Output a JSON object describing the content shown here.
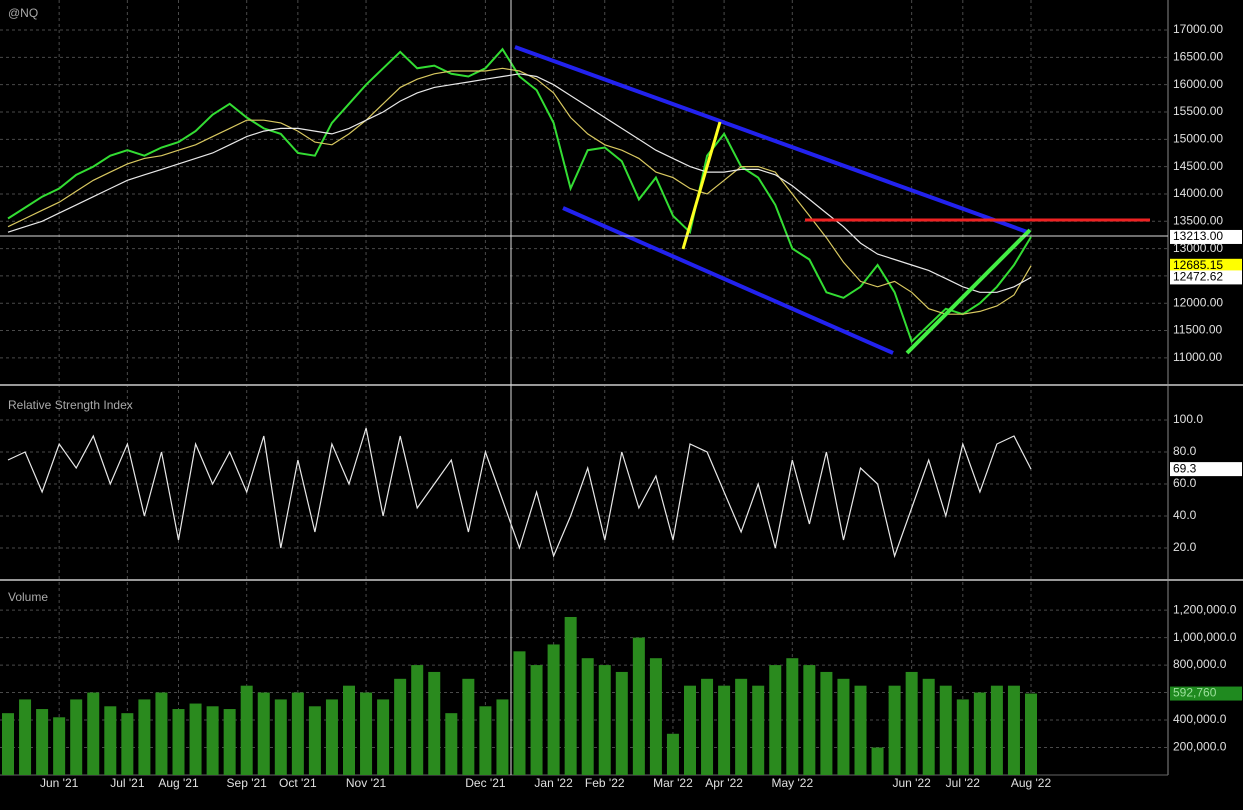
{
  "chart_data": [
    {
      "type": "line",
      "title": "@NQ",
      "ylim": [
        10540,
        17550
      ],
      "yticks": [
        {
          "value": 11000,
          "label": "11000.00"
        },
        {
          "value": 11500,
          "label": "11500.00"
        },
        {
          "value": 12000,
          "label": "12000.00"
        },
        {
          "value": 12500,
          "label": "12500.00"
        },
        {
          "value": 13000,
          "label": "13000.00"
        },
        {
          "value": 13500,
          "label": "13500.00"
        },
        {
          "value": 14000,
          "label": "14000.00"
        },
        {
          "value": 14500,
          "label": "14500.00"
        },
        {
          "value": 15000,
          "label": "15000.00"
        },
        {
          "value": 15500,
          "label": "15500.00"
        },
        {
          "value": 16000,
          "label": "16000.00"
        },
        {
          "value": 16500,
          "label": "16500.00"
        },
        {
          "value": 17000,
          "label": "17000.00"
        }
      ],
      "grid": true,
      "series": [
        {
          "color": "#33dd33",
          "values": [
            13550,
            13750,
            13950,
            14100,
            14350,
            14500,
            14700,
            14800,
            14700,
            14850,
            14950,
            15150,
            15450,
            15650,
            15400,
            15200,
            15100,
            14750,
            14700,
            15300,
            15650,
            16000,
            16300,
            16600,
            16300,
            16350,
            16200,
            16150,
            16300,
            16650,
            16150,
            15900,
            15300,
            14100,
            14800,
            14850,
            14600,
            13900,
            14300,
            13600,
            13300,
            14700,
            15100,
            14500,
            14300,
            13800,
            13000,
            12800,
            12200,
            12100,
            12300,
            12700,
            12200,
            11300,
            11600,
            11900,
            11800,
            12000,
            12300,
            12700,
            13213
          ]
        },
        {
          "color": "#d8c860",
          "values": [
            13400,
            13550,
            13700,
            13850,
            14050,
            14250,
            14400,
            14550,
            14650,
            14700,
            14800,
            14900,
            15050,
            15200,
            15350,
            15350,
            15300,
            15150,
            14950,
            14900,
            15100,
            15350,
            15650,
            15950,
            16100,
            16200,
            16250,
            16250,
            16250,
            16300,
            16250,
            16100,
            15850,
            15400,
            15100,
            14900,
            14800,
            14650,
            14400,
            14300,
            14100,
            14000,
            14250,
            14500,
            14500,
            14400,
            14000,
            13600,
            13200,
            12750,
            12400,
            12300,
            12400,
            12200,
            11900,
            11800,
            11800,
            11850,
            11950,
            12150,
            12685.15
          ]
        },
        {
          "color": "#e8e8e8",
          "values": [
            13300,
            13400,
            13500,
            13650,
            13800,
            13950,
            14100,
            14250,
            14350,
            14450,
            14550,
            14650,
            14750,
            14900,
            15050,
            15150,
            15200,
            15200,
            15150,
            15100,
            15200,
            15350,
            15500,
            15700,
            15850,
            15950,
            16000,
            16050,
            16100,
            16150,
            16200,
            16150,
            16000,
            15800,
            15600,
            15400,
            15200,
            15000,
            14800,
            14650,
            14500,
            14400,
            14400,
            14450,
            14450,
            14350,
            14150,
            13900,
            13650,
            13400,
            13100,
            12900,
            12800,
            12700,
            12600,
            12450,
            12300,
            12200,
            12200,
            12300,
            12472.62
          ]
        }
      ],
      "markers": [
        {
          "value": 13213,
          "label": "13213.00",
          "color": "#ffffff"
        },
        {
          "value": 12685.15,
          "label": "12685.15",
          "color": "#ffff00"
        },
        {
          "value": 12472.62,
          "label": "12472.62",
          "color": "#ffffff"
        }
      ]
    },
    {
      "type": "line",
      "title": "Relative Strength Index",
      "ylim": [
        2.5,
        117.5
      ],
      "yticks": [
        {
          "value": 20,
          "label": "20.0"
        },
        {
          "value": 40,
          "label": "40.0"
        },
        {
          "value": 60,
          "label": "60.0"
        },
        {
          "value": 80,
          "label": "80.0"
        },
        {
          "value": 100,
          "label": "100.0"
        }
      ],
      "grid": true,
      "series": [
        {
          "color": "#e8e8e8",
          "values": [
            75,
            80,
            55,
            85,
            70,
            90,
            60,
            85,
            40,
            80,
            25,
            85,
            60,
            80,
            55,
            90,
            20,
            75,
            30,
            85,
            60,
            95,
            40,
            90,
            45,
            60,
            75,
            30,
            80,
            50,
            20,
            55,
            15,
            40,
            70,
            25,
            80,
            45,
            65,
            25,
            85,
            80,
            55,
            30,
            60,
            20,
            75,
            35,
            80,
            25,
            70,
            60,
            15,
            45,
            75,
            40,
            85,
            55,
            85,
            90,
            69.3
          ]
        }
      ],
      "markers": [
        {
          "value": 69.3,
          "label": "69.3",
          "color": "#ffffff"
        }
      ]
    },
    {
      "type": "bar",
      "title": "Volume",
      "ylim": [
        0,
        1390000
      ],
      "yticks": [
        {
          "value": 200000,
          "label": "200,000.0"
        },
        {
          "value": 400000,
          "label": "400,000.0"
        },
        {
          "value": 600000,
          "label": "600,000.0"
        },
        {
          "value": 800000,
          "label": "800,000.0"
        },
        {
          "value": 1000000,
          "label": "1,000,000.0"
        },
        {
          "value": 1200000,
          "label": "1,200,000.0"
        }
      ],
      "grid": true,
      "categories": [
        null,
        null,
        null,
        "Jun '21",
        null,
        null,
        null,
        "Jul '21",
        null,
        null,
        "Aug '21",
        null,
        null,
        null,
        "Sep '21",
        null,
        null,
        "Oct '21",
        null,
        null,
        null,
        "Nov '21",
        null,
        null,
        null,
        null,
        null,
        null,
        "Dec '21",
        null,
        null,
        null,
        "Jan '22",
        null,
        null,
        "Feb '22",
        null,
        null,
        null,
        "Mar '22",
        null,
        null,
        "Apr '22",
        null,
        null,
        null,
        "May '22",
        null,
        null,
        null,
        null,
        null,
        null,
        "Jun '22",
        null,
        null,
        "Jul '22",
        null,
        null,
        null,
        "Aug '22"
      ],
      "series": [
        {
          "color": "#2a8a1e",
          "values": [
            450000,
            550000,
            480000,
            420000,
            550000,
            600000,
            500000,
            450000,
            550000,
            600000,
            480000,
            520000,
            500000,
            480000,
            650000,
            600000,
            550000,
            600000,
            500000,
            550000,
            650000,
            600000,
            550000,
            700000,
            800000,
            750000,
            450000,
            700000,
            500000,
            550000,
            900000,
            800000,
            950000,
            1150000,
            850000,
            800000,
            750000,
            1000000,
            850000,
            300000,
            650000,
            700000,
            650000,
            700000,
            650000,
            800000,
            850000,
            800000,
            750000,
            700000,
            650000,
            200000,
            650000,
            750000,
            700000,
            650000,
            550000,
            600000,
            650000,
            650000,
            592760
          ]
        }
      ],
      "markers": [
        {
          "value": 592760,
          "label": "592,760",
          "color": "#1f8a1f"
        }
      ]
    }
  ]
}
